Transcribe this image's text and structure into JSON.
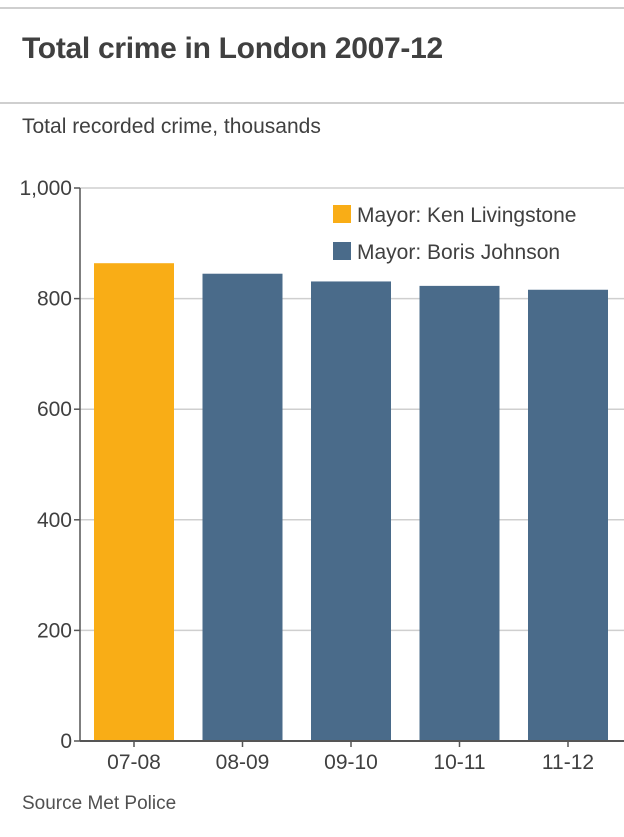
{
  "title": "Total crime in London 2007-12",
  "subtitle": "Total recorded crime, thousands",
  "source": "Source Met Police",
  "colors": {
    "livingstone": "#f9ad16",
    "johnson": "#4a6b8a",
    "grid": "#cfcfcf",
    "axis": "#555555"
  },
  "chart_data": {
    "type": "bar",
    "title": "Total crime in London 2007-12",
    "subtitle": "Total recorded crime, thousands",
    "categories": [
      "07-08",
      "08-09",
      "09-10",
      "10-11",
      "11-12"
    ],
    "values": [
      864,
      845,
      831,
      823,
      816
    ],
    "bar_series": [
      "Mayor: Ken Livingstone",
      "Mayor: Boris Johnson",
      "Mayor: Boris Johnson",
      "Mayor: Boris Johnson",
      "Mayor: Boris Johnson"
    ],
    "series": [
      {
        "name": "Mayor: Ken Livingstone",
        "color": "#f9ad16"
      },
      {
        "name": "Mayor: Boris Johnson",
        "color": "#4a6b8a"
      }
    ],
    "yticks": [
      "0",
      "200",
      "400",
      "600",
      "800",
      "1,000"
    ],
    "ytick_values": [
      0,
      200,
      400,
      600,
      800,
      1000
    ],
    "ylim": [
      0,
      1000
    ],
    "grid": true,
    "legend_position": "top-right"
  }
}
